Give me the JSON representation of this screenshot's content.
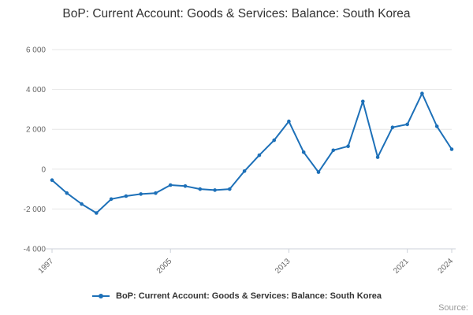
{
  "title": "BoP: Current Account: Goods & Services: Balance: South Korea",
  "legend": {
    "label": "BoP: Current Account: Goods & Services: Balance: South Korea"
  },
  "source": {
    "label": "Source:"
  },
  "colors": {
    "series": "#1d70b8",
    "grid": "#e6e6e6",
    "axis": "#ccd1d9",
    "tick_text": "#666666",
    "title_text": "#333333"
  },
  "chart_data": {
    "type": "line",
    "title": "BoP: Current Account: Goods & Services: Balance: South Korea",
    "xlabel": "",
    "ylabel": "",
    "x": [
      1997,
      1998,
      1999,
      2000,
      2001,
      2002,
      2003,
      2004,
      2005,
      2006,
      2007,
      2008,
      2009,
      2010,
      2011,
      2012,
      2013,
      2014,
      2015,
      2016,
      2017,
      2018,
      2019,
      2020,
      2021,
      2022,
      2023,
      2024
    ],
    "series": [
      {
        "name": "BoP: Current Account: Goods & Services: Balance: South Korea",
        "values": [
          -550,
          -1200,
          -1750,
          -2200,
          -1500,
          -1350,
          -1250,
          -1200,
          -800,
          -850,
          -1000,
          -1050,
          -1000,
          -100,
          700,
          1450,
          2400,
          850,
          -150,
          950,
          1150,
          3400,
          600,
          2100,
          2250,
          3800,
          2150,
          1000
        ]
      }
    ],
    "ylim": [
      -4000,
      6000
    ],
    "yticks": [
      6000,
      4000,
      2000,
      0,
      -2000,
      -4000
    ],
    "ytick_labels": [
      "6 000",
      "4 000",
      "2 000",
      "0",
      "-2 000",
      "-4 000"
    ],
    "xticks": [
      1997,
      2005,
      2013,
      2021,
      2024
    ],
    "xtick_labels": [
      "1997",
      "2005",
      "2013",
      "2021",
      "2024"
    ],
    "grid": true,
    "legend_position": "bottom"
  }
}
